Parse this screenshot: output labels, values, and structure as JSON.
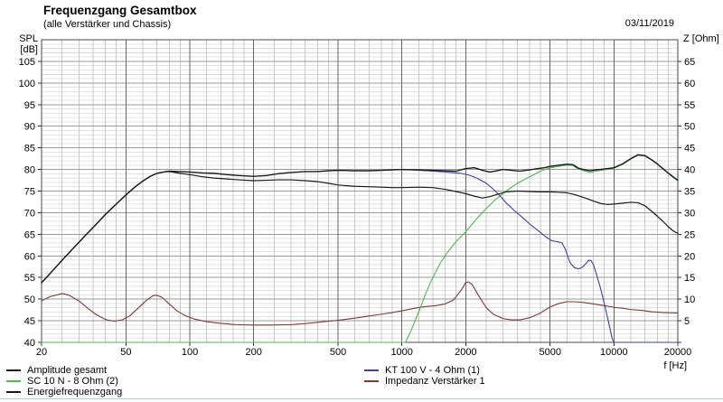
{
  "header": {
    "title": "Frequenzgang Gesamtbox",
    "subtitle": "(alle Verstärker und Chassis)",
    "date": "03/11/2019"
  },
  "axes": {
    "left_label": "SPL [dB]",
    "right_label": "Z [Ohm]",
    "x_label": "f [Hz]",
    "spl_min": 40,
    "spl_max": 110,
    "spl_tick_min": 40,
    "spl_tick_max": 105,
    "spl_tick_step": 5,
    "z_tick_min": 5,
    "z_tick_max": 65,
    "z_tick_step": 5,
    "f_min": 20,
    "f_max": 20000,
    "f_major_ticks": [
      20,
      50,
      100,
      200,
      500,
      1000,
      2000,
      5000,
      10000,
      20000
    ],
    "f_major_labels": [
      "20",
      "50",
      "100",
      "200",
      "500",
      "1000",
      "2000",
      "5000",
      "10000",
      "20000"
    ],
    "grid": true
  },
  "colors": {
    "grid_minor_h": "#e3e3e3",
    "grid_major_h": "#999999",
    "grid_minor_v": "#c9c9c9",
    "grid_major_v": "#666666",
    "border": "#4a4a4a",
    "tick": "#333333",
    "text": "#000000",
    "bottom_separator": "#b9c6d9"
  },
  "chart_data": {
    "type": "line",
    "title": "Frequenzgang Gesamtbox",
    "x_scale": "log",
    "x_unit": "Hz",
    "xlim": [
      20,
      20000
    ],
    "ylim_spl_db": [
      40,
      110
    ],
    "ylim_z_ohm": [
      0,
      70
    ],
    "legend_position": "bottom",
    "series": [
      {
        "name": "Impedanz Verstärker 1",
        "axis": "right",
        "unit": "Ohm",
        "color": "#7d3a3a",
        "width": 1.1,
        "points": [
          [
            20,
            9.6
          ],
          [
            22,
            10.6
          ],
          [
            25,
            11.3
          ],
          [
            27,
            10.9
          ],
          [
            30,
            9.6
          ],
          [
            33,
            7.9
          ],
          [
            36,
            6.5
          ],
          [
            40,
            5.3
          ],
          [
            44,
            4.9
          ],
          [
            48,
            5.2
          ],
          [
            52,
            6.1
          ],
          [
            57,
            7.9
          ],
          [
            62,
            9.6
          ],
          [
            67,
            10.8
          ],
          [
            70,
            10.9
          ],
          [
            74,
            10.4
          ],
          [
            80,
            8.9
          ],
          [
            87,
            7.3
          ],
          [
            95,
            6.2
          ],
          [
            105,
            5.4
          ],
          [
            120,
            4.8
          ],
          [
            140,
            4.4
          ],
          [
            165,
            4.1
          ],
          [
            200,
            4.0
          ],
          [
            240,
            4.0
          ],
          [
            300,
            4.1
          ],
          [
            360,
            4.4
          ],
          [
            430,
            4.8
          ],
          [
            500,
            5.1
          ],
          [
            600,
            5.6
          ],
          [
            700,
            6.1
          ],
          [
            800,
            6.5
          ],
          [
            900,
            6.9
          ],
          [
            1000,
            7.3
          ],
          [
            1150,
            7.9
          ],
          [
            1300,
            8.3
          ],
          [
            1450,
            8.5
          ],
          [
            1600,
            8.9
          ],
          [
            1750,
            9.8
          ],
          [
            1900,
            12.0
          ],
          [
            2000,
            13.8
          ],
          [
            2060,
            14.0
          ],
          [
            2150,
            13.3
          ],
          [
            2300,
            10.8
          ],
          [
            2500,
            8.0
          ],
          [
            2700,
            6.5
          ],
          [
            3000,
            5.5
          ],
          [
            3300,
            5.2
          ],
          [
            3600,
            5.2
          ],
          [
            4000,
            5.7
          ],
          [
            4500,
            6.8
          ],
          [
            5000,
            8.2
          ],
          [
            5500,
            9.0
          ],
          [
            6000,
            9.4
          ],
          [
            6500,
            9.4
          ],
          [
            7000,
            9.3
          ],
          [
            7500,
            9.1
          ],
          [
            8000,
            8.9
          ],
          [
            9000,
            8.5
          ],
          [
            10000,
            8.1
          ],
          [
            11000,
            7.9
          ],
          [
            12000,
            7.6
          ],
          [
            13500,
            7.4
          ],
          [
            15000,
            7.1
          ],
          [
            17000,
            6.9
          ],
          [
            20000,
            6.8
          ]
        ]
      },
      {
        "name": "SC 10 N - 8 Ohm (2)",
        "axis": "left",
        "unit": "dB",
        "color": "#55b555",
        "width": 1.1,
        "points": [
          [
            20,
            40
          ],
          [
            1040,
            40
          ],
          [
            1100,
            42.5
          ],
          [
            1200,
            47
          ],
          [
            1300,
            51.5
          ],
          [
            1400,
            55
          ],
          [
            1520,
            58.4
          ],
          [
            1650,
            61
          ],
          [
            1800,
            63.3
          ],
          [
            2000,
            65.6
          ],
          [
            2200,
            68
          ],
          [
            2500,
            71
          ],
          [
            2800,
            73.3
          ],
          [
            3100,
            75
          ],
          [
            3500,
            76.8
          ],
          [
            4000,
            78.3
          ],
          [
            4500,
            79.6
          ],
          [
            5000,
            80.4
          ],
          [
            5500,
            80.7
          ],
          [
            6000,
            81.0
          ],
          [
            6400,
            80.9
          ],
          [
            6800,
            80.1
          ],
          [
            7300,
            79.6
          ],
          [
            7700,
            79.3
          ],
          [
            8200,
            79.6
          ],
          [
            9000,
            79.9
          ],
          [
            10000,
            80.3
          ],
          [
            11000,
            81.2
          ],
          [
            12000,
            82.4
          ],
          [
            13000,
            83.3
          ],
          [
            14000,
            83.1
          ],
          [
            15000,
            82.2
          ],
          [
            16000,
            81.2
          ],
          [
            17000,
            80.1
          ],
          [
            18000,
            79.1
          ],
          [
            19000,
            78.2
          ],
          [
            20000,
            77.4
          ]
        ]
      },
      {
        "name": "KT 100 V - 4 Ohm (1)",
        "axis": "left",
        "unit": "dB",
        "color": "#4040a0",
        "width": 1.1,
        "points": [
          [
            950,
            80.0
          ],
          [
            1100,
            79.9
          ],
          [
            1300,
            79.7
          ],
          [
            1500,
            79.5
          ],
          [
            1700,
            79.3
          ],
          [
            1900,
            79.1
          ],
          [
            2100,
            78.6
          ],
          [
            2300,
            77.8
          ],
          [
            2500,
            76.8
          ],
          [
            2700,
            75.4
          ],
          [
            2900,
            73.9
          ],
          [
            3100,
            72.3
          ],
          [
            3400,
            70.4
          ],
          [
            3700,
            68.9
          ],
          [
            4000,
            67.4
          ],
          [
            4400,
            65.8
          ],
          [
            4800,
            64.3
          ],
          [
            5100,
            63.5
          ],
          [
            5400,
            63.3
          ],
          [
            5700,
            63.0
          ],
          [
            5900,
            61.5
          ],
          [
            6200,
            58.5
          ],
          [
            6500,
            57.3
          ],
          [
            6800,
            57.0
          ],
          [
            7100,
            57.4
          ],
          [
            7400,
            58.3
          ],
          [
            7600,
            59.0
          ],
          [
            7800,
            58.9
          ],
          [
            8000,
            58.0
          ],
          [
            8300,
            55.5
          ],
          [
            8700,
            52.0
          ],
          [
            9100,
            48.0
          ],
          [
            9500,
            44.0
          ],
          [
            9800,
            41.0
          ],
          [
            9950,
            40.0
          ],
          [
            20000,
            40.0
          ]
        ]
      },
      {
        "name": "Energiefrequenzgang",
        "axis": "left",
        "unit": "dB",
        "color": "#1a1a1a",
        "width": 1.2,
        "points": [
          [
            20,
            53.8
          ],
          [
            22,
            56
          ],
          [
            25,
            59
          ],
          [
            28,
            61.6
          ],
          [
            32,
            64.6
          ],
          [
            36,
            67.2
          ],
          [
            40,
            69.6
          ],
          [
            45,
            72
          ],
          [
            50,
            74.1
          ],
          [
            55,
            75.9
          ],
          [
            60,
            77.3
          ],
          [
            65,
            78.4
          ],
          [
            70,
            79.1
          ],
          [
            75,
            79.4
          ],
          [
            80,
            79.5
          ],
          [
            90,
            79.1
          ],
          [
            100,
            78.8
          ],
          [
            115,
            78.3
          ],
          [
            130,
            78.0
          ],
          [
            150,
            77.8
          ],
          [
            170,
            77.6
          ],
          [
            200,
            77.4
          ],
          [
            230,
            77.5
          ],
          [
            260,
            77.6
          ],
          [
            300,
            77.6
          ],
          [
            350,
            77.4
          ],
          [
            400,
            77.2
          ],
          [
            450,
            76.8
          ],
          [
            500,
            76.4
          ],
          [
            600,
            76.1
          ],
          [
            700,
            76.0
          ],
          [
            800,
            75.9
          ],
          [
            900,
            75.8
          ],
          [
            1000,
            75.8
          ],
          [
            1200,
            75.9
          ],
          [
            1400,
            75.8
          ],
          [
            1600,
            75.4
          ],
          [
            1800,
            74.9
          ],
          [
            2000,
            74.4
          ],
          [
            2200,
            73.8
          ],
          [
            2400,
            73.4
          ],
          [
            2600,
            73.7
          ],
          [
            2800,
            74.2
          ],
          [
            3100,
            74.8
          ],
          [
            3500,
            75.0
          ],
          [
            4000,
            74.9
          ],
          [
            4500,
            74.8
          ],
          [
            5000,
            74.8
          ],
          [
            5500,
            74.7
          ],
          [
            6000,
            74.6
          ],
          [
            6500,
            74.2
          ],
          [
            7000,
            73.7
          ],
          [
            7500,
            73.2
          ],
          [
            8000,
            72.7
          ],
          [
            8700,
            72.1
          ],
          [
            9300,
            71.9
          ],
          [
            10000,
            72.0
          ],
          [
            11000,
            72.2
          ],
          [
            12000,
            72.4
          ],
          [
            13000,
            72.3
          ],
          [
            14000,
            71.6
          ],
          [
            15000,
            70.4
          ],
          [
            16000,
            69.2
          ],
          [
            17000,
            68.0
          ],
          [
            18000,
            66.8
          ],
          [
            19000,
            65.8
          ],
          [
            20000,
            65.2
          ]
        ]
      },
      {
        "name": "Amplitude gesamt",
        "axis": "left",
        "unit": "dB",
        "color": "#1a1a1a",
        "width": 1.4,
        "points": [
          [
            20,
            53.8
          ],
          [
            22,
            56
          ],
          [
            25,
            59
          ],
          [
            28,
            61.6
          ],
          [
            32,
            64.6
          ],
          [
            36,
            67.2
          ],
          [
            40,
            69.6
          ],
          [
            45,
            72
          ],
          [
            50,
            74.1
          ],
          [
            55,
            75.9
          ],
          [
            60,
            77.3
          ],
          [
            65,
            78.4
          ],
          [
            70,
            79.1
          ],
          [
            75,
            79.4
          ],
          [
            80,
            79.6
          ],
          [
            90,
            79.5
          ],
          [
            100,
            79.4
          ],
          [
            115,
            79.2
          ],
          [
            130,
            79.1
          ],
          [
            150,
            78.8
          ],
          [
            170,
            78.6
          ],
          [
            200,
            78.4
          ],
          [
            230,
            78.6
          ],
          [
            260,
            79.0
          ],
          [
            300,
            79.3
          ],
          [
            350,
            79.5
          ],
          [
            400,
            79.5
          ],
          [
            450,
            79.7
          ],
          [
            500,
            79.8
          ],
          [
            600,
            79.7
          ],
          [
            700,
            79.7
          ],
          [
            800,
            79.8
          ],
          [
            900,
            79.9
          ],
          [
            1000,
            80.0
          ],
          [
            1200,
            79.9
          ],
          [
            1400,
            79.8
          ],
          [
            1600,
            79.7
          ],
          [
            1800,
            79.6
          ],
          [
            2000,
            80.2
          ],
          [
            2200,
            80.4
          ],
          [
            2400,
            79.8
          ],
          [
            2600,
            79.4
          ],
          [
            2800,
            79.7
          ],
          [
            3000,
            80.0
          ],
          [
            3300,
            79.8
          ],
          [
            3600,
            79.6
          ],
          [
            4000,
            79.9
          ],
          [
            4400,
            80.2
          ],
          [
            4700,
            80.4
          ],
          [
            5000,
            80.7
          ],
          [
            5500,
            81.0
          ],
          [
            6000,
            81.2
          ],
          [
            6400,
            81.1
          ],
          [
            6800,
            80.3
          ],
          [
            7300,
            79.9
          ],
          [
            7700,
            79.7
          ],
          [
            8200,
            79.9
          ],
          [
            9000,
            80.1
          ],
          [
            10000,
            80.4
          ],
          [
            11000,
            81.3
          ],
          [
            12000,
            82.5
          ],
          [
            13000,
            83.4
          ],
          [
            14000,
            83.2
          ],
          [
            15000,
            82.3
          ],
          [
            16000,
            81.3
          ],
          [
            17000,
            80.2
          ],
          [
            18000,
            79.2
          ],
          [
            19000,
            78.3
          ],
          [
            20000,
            77.5
          ]
        ]
      }
    ]
  },
  "legend": {
    "col1": [
      {
        "label": "Amplitude gesamt",
        "series_index": 4
      },
      {
        "label": "SC 10 N - 8 Ohm (2)",
        "series_index": 1
      },
      {
        "label": "Energiefrequenzgang",
        "series_index": 3
      }
    ],
    "col2": [
      {
        "label": "KT 100 V - 4 Ohm (1)",
        "series_index": 2
      },
      {
        "label": "Impedanz Verstärker 1",
        "series_index": 0
      }
    ]
  }
}
